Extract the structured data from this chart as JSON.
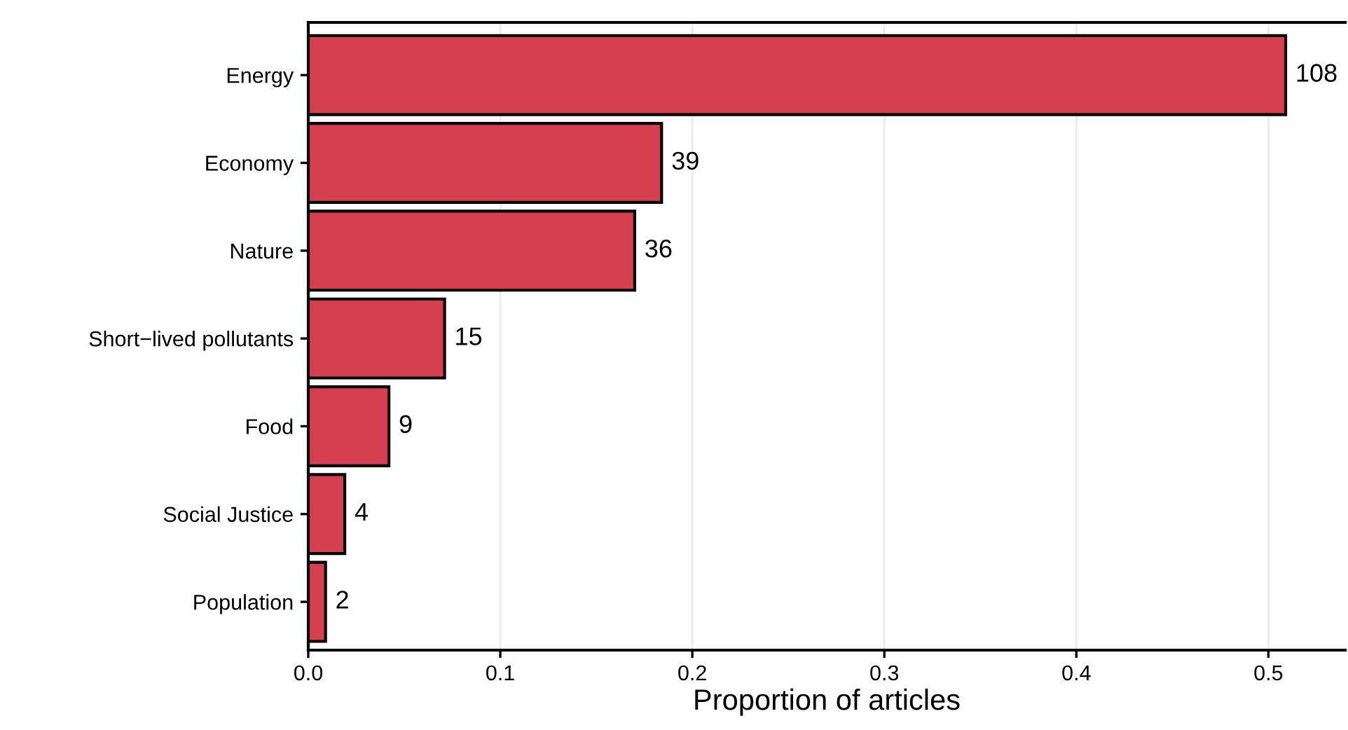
{
  "chart_data": {
    "type": "bar",
    "orientation": "horizontal",
    "xlabel": "Proportion of articles",
    "categories": [
      "Energy",
      "Economy",
      "Nature",
      "Short−lived pollutants",
      "Food",
      "Social Justice",
      "Population"
    ],
    "values": [
      0.509,
      0.184,
      0.17,
      0.071,
      0.042,
      0.019,
      0.009
    ],
    "annotations": [
      {
        "text": "108",
        "x": 0.509,
        "y": "Energy"
      },
      {
        "text": "39",
        "x": 0.184,
        "y": "Economy"
      },
      {
        "text": "36",
        "x": 0.17,
        "y": "Nature"
      },
      {
        "text": "15",
        "x": 0.071,
        "y": "Short−lived pollutants"
      },
      {
        "text": "9",
        "x": 0.042,
        "y": "Food"
      },
      {
        "text": "4",
        "x": 0.019,
        "y": "Social Justice"
      },
      {
        "text": "2",
        "x": 0.009,
        "y": "Population"
      }
    ],
    "color": "#d63f50",
    "xlim": [
      0,
      0.54
    ],
    "xticks": [
      {
        "value": 0,
        "label": "0.0"
      },
      0.1,
      0.2,
      0.3,
      0.4,
      0.5
    ],
    "grid": "x"
  }
}
